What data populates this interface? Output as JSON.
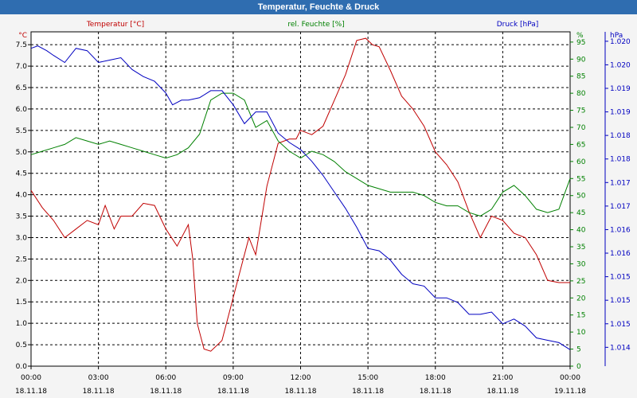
{
  "window": {
    "title": "Temperatur, Feuchte & Druck"
  },
  "chart_data": {
    "type": "line",
    "title": "Temperatur, Feuchte & Druck",
    "colors": {
      "temperature": "#c00000",
      "humidity": "#008000",
      "pressure": "#0000c0"
    },
    "grid": true,
    "x_ticks": [
      {
        "time": "00:00",
        "date": "18.11.18"
      },
      {
        "time": "03:00",
        "date": "18.11.18"
      },
      {
        "time": "06:00",
        "date": "18.11.18"
      },
      {
        "time": "09:00",
        "date": "18.11.18"
      },
      {
        "time": "12:00",
        "date": "18.11.18"
      },
      {
        "time": "15:00",
        "date": "18.11.18"
      },
      {
        "time": "18:00",
        "date": "18.11.18"
      },
      {
        "time": "21:00",
        "date": "18.11.18"
      },
      {
        "time": "00:00",
        "date": "19.11.18"
      }
    ],
    "axes": {
      "temperature": {
        "label": "Temperatur [°C]",
        "unit": "°C",
        "ylim": [
          0,
          7.8
        ],
        "ticks": [
          "0.0",
          "0.5",
          "1.0",
          "1.5",
          "2.0",
          "2.5",
          "3.0",
          "3.5",
          "4.0",
          "4.5",
          "5.0",
          "5.5",
          "6.0",
          "6.5",
          "7.0",
          "7.5"
        ]
      },
      "humidity": {
        "label": "rel. Feuchte [%]",
        "unit": "%",
        "ylim": [
          0,
          98
        ],
        "ticks": [
          "0",
          "5",
          "10",
          "15",
          "20",
          "25",
          "30",
          "35",
          "40",
          "45",
          "50",
          "55",
          "60",
          "65",
          "70",
          "75",
          "80",
          "85",
          "90",
          "95"
        ]
      },
      "pressure": {
        "label": "Druck [hPa]",
        "unit": "hPa",
        "ylim": [
          1013.6,
          1020.7
        ],
        "ticks": [
          "1.014",
          "1.015",
          "1.015",
          "1.015",
          "1.016",
          "1.016",
          "1.017",
          "1.017",
          "1.018",
          "1.018",
          "1.019",
          "1.019",
          "1.020",
          "1.020"
        ]
      }
    },
    "series": [
      {
        "name": "Temperatur [°C]",
        "axis": "temperature",
        "x": [
          0,
          0.5,
          1,
          1.5,
          2,
          2.5,
          3,
          3.3,
          3.7,
          4,
          4.5,
          5,
          5.5,
          6,
          6.5,
          7,
          7.2,
          7.4,
          7.7,
          8,
          8.5,
          9,
          9.3,
          9.7,
          10,
          10.5,
          11,
          11.5,
          11.8,
          12,
          12.5,
          13,
          13.5,
          14,
          14.5,
          14.9,
          15.2,
          15.5,
          16,
          16.5,
          17,
          17.5,
          18,
          18.5,
          19,
          19.5,
          20,
          20.5,
          21,
          21.5,
          22,
          22.5,
          23,
          23.5,
          24
        ],
        "values": [
          4.1,
          3.7,
          3.4,
          3.0,
          3.2,
          3.4,
          3.3,
          3.75,
          3.2,
          3.5,
          3.5,
          3.8,
          3.75,
          3.2,
          2.8,
          3.3,
          2.5,
          1.0,
          0.4,
          0.35,
          0.6,
          1.6,
          2.2,
          3.0,
          2.6,
          4.2,
          5.2,
          5.3,
          5.3,
          5.5,
          5.4,
          5.6,
          6.2,
          6.8,
          7.6,
          7.65,
          7.5,
          7.45,
          6.9,
          6.3,
          6.0,
          5.6,
          5.0,
          4.7,
          4.3,
          3.6,
          3.0,
          3.5,
          3.4,
          3.1,
          3.0,
          2.6,
          2.0,
          1.95,
          1.95
        ]
      },
      {
        "name": "rel. Feuchte [%]",
        "axis": "humidity",
        "x": [
          0,
          0.5,
          1,
          1.5,
          2,
          2.5,
          3,
          3.5,
          4,
          4.5,
          5,
          5.5,
          6,
          6.5,
          7,
          7.5,
          8,
          8.5,
          9,
          9.5,
          10,
          10.5,
          11,
          11.5,
          12,
          12.5,
          13,
          13.5,
          14,
          14.5,
          15,
          15.5,
          16,
          16.5,
          17,
          17.5,
          18,
          18.5,
          19,
          19.5,
          20,
          20.5,
          21,
          21.5,
          22,
          22.5,
          23,
          23.5,
          24
        ],
        "values": [
          62,
          63,
          64,
          65,
          67,
          66,
          65,
          66,
          65,
          64,
          63,
          62,
          61,
          62,
          64,
          68,
          78,
          80,
          80,
          78,
          70,
          72,
          66,
          63,
          61,
          63,
          62,
          60,
          57,
          55,
          53,
          52,
          51,
          51,
          51,
          50,
          48,
          47,
          47,
          45,
          44,
          46,
          51,
          53,
          50,
          46,
          45,
          46,
          55
        ]
      },
      {
        "name": "Druck [hPa]",
        "axis": "pressure",
        "x": [
          0,
          0.3,
          0.7,
          1,
          1.5,
          2,
          2.5,
          3,
          3.5,
          4,
          4.5,
          5,
          5.5,
          6,
          6.3,
          6.7,
          7,
          7.5,
          8,
          8.5,
          9,
          9.5,
          10,
          10.5,
          11,
          11.5,
          12,
          12.5,
          13,
          13.5,
          14,
          14.5,
          15,
          15.5,
          16,
          16.5,
          17,
          17.5,
          18,
          18.5,
          19,
          19.5,
          20,
          20.5,
          21,
          21.5,
          22,
          22.5,
          23,
          23.5,
          24
        ],
        "values": [
          1020.35,
          1020.4,
          1020.3,
          1020.2,
          1020.05,
          1020.35,
          1020.3,
          1020.05,
          1020.1,
          1020.15,
          1019.9,
          1019.75,
          1019.65,
          1019.4,
          1019.15,
          1019.25,
          1019.25,
          1019.3,
          1019.45,
          1019.45,
          1019.15,
          1018.75,
          1019.0,
          1019.0,
          1018.55,
          1018.35,
          1018.2,
          1017.95,
          1017.65,
          1017.3,
          1016.95,
          1016.55,
          1016.1,
          1016.05,
          1015.85,
          1015.55,
          1015.35,
          1015.3,
          1015.05,
          1015.05,
          1014.95,
          1014.7,
          1014.7,
          1014.75,
          1014.5,
          1014.6,
          1014.45,
          1014.2,
          1014.15,
          1014.1,
          1013.95
        ]
      }
    ]
  }
}
